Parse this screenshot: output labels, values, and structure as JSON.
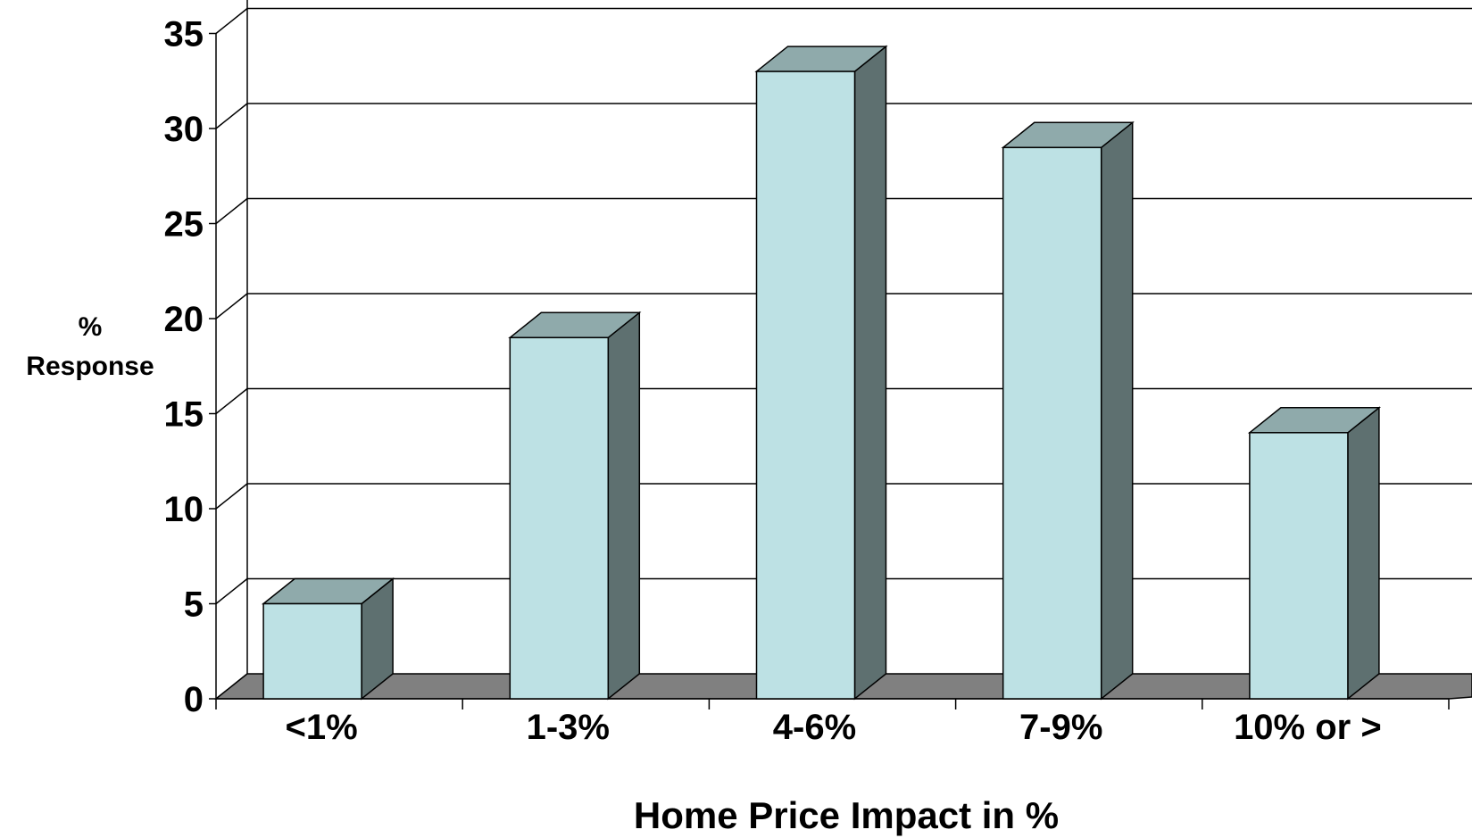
{
  "chart_data": {
    "type": "bar",
    "categories": [
      "<1%",
      "1-3%",
      "4-6%",
      "7-9%",
      "10% or >"
    ],
    "values": [
      5,
      19,
      33,
      29,
      14
    ],
    "title": "",
    "xlabel": "Home Price Impact in %",
    "ylabel_lines": [
      "%",
      "Response"
    ],
    "ylim": [
      0,
      35
    ],
    "yticks": [
      "0",
      "5",
      "10",
      "15",
      "20",
      "25",
      "30",
      "35"
    ],
    "grid": true,
    "legend": "none",
    "colors": {
      "bar_front": "#bde1e4",
      "bar_top": "#8faaab",
      "bar_side": "#5e7070",
      "floor": "#808080",
      "grid": "#000000"
    }
  }
}
